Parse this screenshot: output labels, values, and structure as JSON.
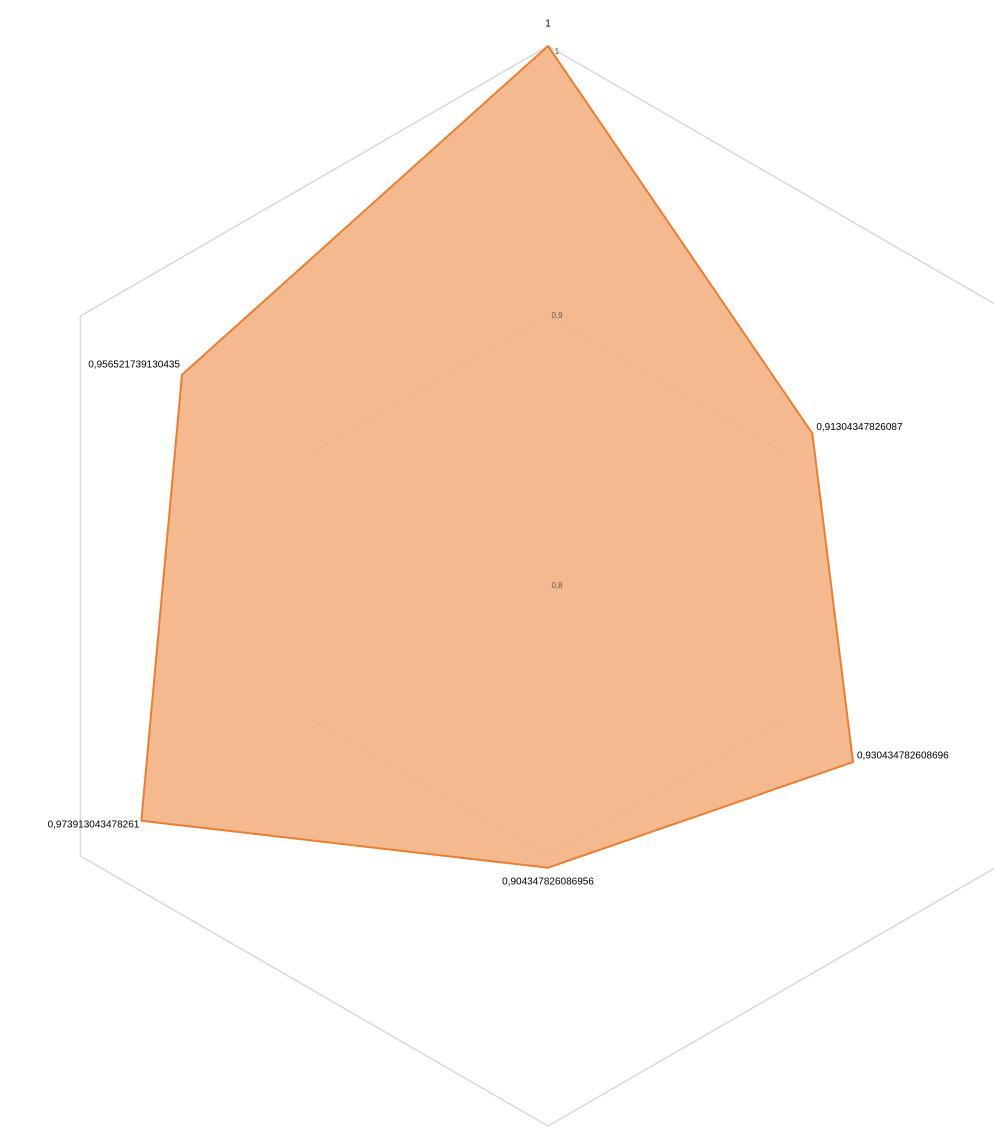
{
  "chart_data": {
    "type": "radar",
    "values": [
      1,
      0.91304347826087,
      0.930434782608696,
      0.904347826086956,
      0.973913043478261,
      0.956521739130435
    ],
    "value_labels": [
      "1",
      "0,91304347826087",
      "0,930434782608696",
      "0,904347826086956",
      "0,973913043478261",
      "0,956521739130435"
    ],
    "color": "#ed7d31",
    "fill": "#f4b183",
    "ylim": [
      0.8,
      1
    ],
    "yticks": [
      {
        "value": 0.8,
        "label": "0,8"
      },
      {
        "value": 0.9,
        "label": "0,9"
      },
      1
    ],
    "grid": true
  }
}
